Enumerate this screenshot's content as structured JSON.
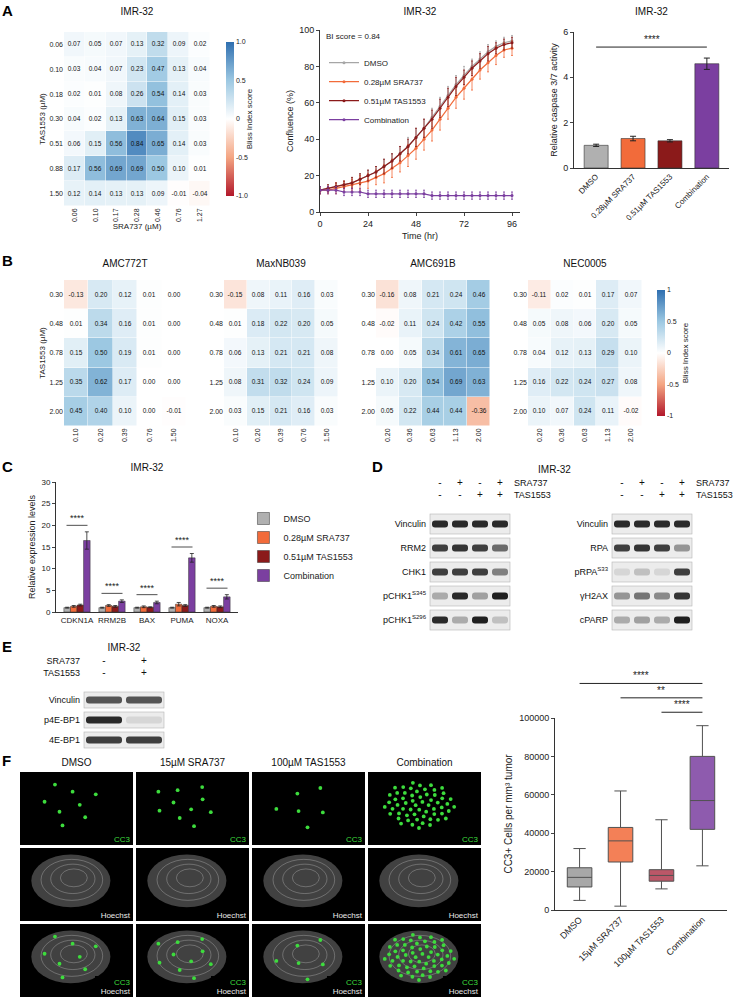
{
  "panel_letters": [
    "A",
    "B",
    "C",
    "D",
    "E",
    "F"
  ],
  "chart_data": [
    {
      "type": "heatmap",
      "title": "IMR-32",
      "x_label": "SRA737 (µM)",
      "y_label": "TAS1553 (µM)",
      "x_categories": [
        "0.06",
        "0.10",
        "0.17",
        "0.28",
        "0.46",
        "0.76",
        "1.27"
      ],
      "y_categories": [
        "0.06",
        "0.10",
        "0.18",
        "0.30",
        "0.51",
        "0.88",
        "1.50"
      ],
      "cells": [
        [
          0.07,
          0.05,
          0.07,
          0.13,
          0.32,
          0.09,
          0.02
        ],
        [
          0.03,
          0.04,
          0.07,
          0.23,
          0.47,
          0.13,
          0.04
        ],
        [
          0.02,
          0.01,
          0.08,
          0.26,
          0.54,
          0.14,
          0.03
        ],
        [
          0.04,
          0.02,
          0.13,
          0.63,
          0.64,
          0.15,
          0.03
        ],
        [
          0.06,
          0.15,
          0.56,
          0.84,
          0.65,
          0.14,
          0.03
        ],
        [
          0.17,
          0.56,
          0.69,
          0.69,
          0.5,
          0.1,
          0.01
        ],
        [
          0.12,
          0.14,
          0.13,
          0.13,
          0.09,
          -0.01,
          -0.04
        ]
      ],
      "zlim": [
        -1,
        1
      ],
      "data_labels": true,
      "colorbar": {
        "title": "Bliss Index score",
        "ticks": [
          {
            "value": 1,
            "label": "1.0"
          },
          0.5,
          0,
          -0.5,
          {
            "value": -1,
            "label": "-1.0"
          }
        ]
      }
    },
    {
      "type": "line",
      "title": "IMR-32",
      "x_label": "Time (hr)",
      "y_label": "Confluence (%)",
      "annotation": "BI score = 0.84",
      "x": [
        0,
        4,
        8,
        12,
        16,
        20,
        24,
        28,
        32,
        36,
        40,
        44,
        48,
        52,
        56,
        60,
        64,
        68,
        72,
        76,
        80,
        84,
        88,
        92,
        96
      ],
      "xlim": [
        0,
        100
      ],
      "xticks": [
        0,
        24,
        48,
        72,
        96
      ],
      "ylim": [
        0,
        100
      ],
      "yticks": [
        0,
        20,
        40,
        60,
        80,
        100
      ],
      "legend": "top left",
      "series": [
        {
          "name": "DMSO",
          "color": "#a6a6a6",
          "values": [
            12,
            13,
            14,
            15,
            16,
            18,
            20,
            22,
            25,
            28,
            32,
            36,
            41,
            46,
            52,
            58,
            64,
            70,
            75,
            80,
            84,
            88,
            91,
            93,
            94
          ],
          "errors": [
            2,
            2,
            2,
            2,
            3,
            3,
            3,
            3,
            4,
            4,
            4,
            5,
            5,
            5,
            5,
            5,
            5,
            5,
            5,
            4,
            4,
            4,
            3,
            3,
            3
          ]
        },
        {
          "name": "0.28µM SRA737",
          "color": "#f26b3a",
          "values": [
            12,
            12,
            13,
            14,
            15,
            16,
            17,
            19,
            21,
            24,
            27,
            31,
            35,
            40,
            45,
            51,
            57,
            63,
            68,
            73,
            78,
            82,
            86,
            89,
            90
          ],
          "errors": [
            2,
            2,
            3,
            3,
            3,
            4,
            4,
            4,
            5,
            5,
            5,
            6,
            6,
            6,
            6,
            6,
            6,
            6,
            6,
            6,
            5,
            5,
            5,
            4,
            4
          ]
        },
        {
          "name": "0.51µM TAS1553",
          "color": "#8b1a1a",
          "values": [
            12,
            13,
            14,
            15,
            16,
            18,
            20,
            22,
            25,
            28,
            32,
            36,
            41,
            46,
            51,
            57,
            63,
            69,
            74,
            79,
            83,
            87,
            90,
            92,
            93
          ],
          "errors": [
            2,
            2,
            2,
            2,
            3,
            3,
            3,
            3,
            4,
            4,
            4,
            4,
            5,
            5,
            5,
            5,
            5,
            5,
            4,
            4,
            4,
            4,
            3,
            3,
            3
          ]
        },
        {
          "name": "Combination",
          "color": "#7b3fa0",
          "values": [
            12,
            12,
            12,
            11,
            11,
            11,
            10,
            10,
            10,
            10,
            10,
            10,
            10,
            10,
            9,
            9,
            9,
            9,
            9,
            9,
            9,
            9,
            9,
            9,
            9
          ],
          "errors": [
            2,
            2,
            2,
            2,
            2,
            2,
            2,
            2,
            2,
            2,
            2,
            2,
            2,
            2,
            2,
            2,
            2,
            2,
            2,
            2,
            2,
            2,
            2,
            2,
            2
          ]
        }
      ]
    },
    {
      "type": "bar",
      "title": "IMR-32",
      "y_label": "Relative caspase 3/7 activity",
      "categories": [
        "DMSO",
        "0.28µM SRA737",
        "0.51µM TAS1553",
        "Combination"
      ],
      "values": [
        1.0,
        1.3,
        1.2,
        4.6
      ],
      "errors": [
        0.05,
        0.1,
        0.05,
        0.25
      ],
      "colors": [
        "#b0b0b0",
        "#f26b3a",
        "#8b1a1a",
        "#7b3fa0"
      ],
      "ylim": [
        0,
        6
      ],
      "yticks": [
        0,
        2,
        4,
        6
      ],
      "significance": [
        {
          "from": 0,
          "to": 3,
          "label": "****"
        }
      ]
    },
    {
      "type": "heatmap",
      "title": "AMC772T",
      "y_label": "TAS1553 (µM)",
      "x_categories": [
        "0.10",
        "0.20",
        "0.39",
        "0.76",
        "1.50"
      ],
      "y_categories": [
        "0.30",
        "0.48",
        "0.78",
        "1.25",
        "2.00"
      ],
      "cells": [
        [
          -0.13,
          0.2,
          0.12,
          0.01,
          0.0
        ],
        [
          0.01,
          0.34,
          0.16,
          0.01,
          0.0
        ],
        [
          0.15,
          0.5,
          0.19,
          0.01,
          0.0
        ],
        [
          0.35,
          0.62,
          0.17,
          0.0,
          0.0
        ],
        [
          0.45,
          0.4,
          0.1,
          0.0,
          -0.01
        ]
      ],
      "zlim": [
        -1,
        1
      ],
      "data_labels": true
    },
    {
      "type": "heatmap",
      "title": "MaxNB039",
      "x_categories": [
        "0.10",
        "0.20",
        "0.39",
        "0.76",
        "1.50"
      ],
      "y_categories": [
        "0.30",
        "0.48",
        "0.78",
        "1.25",
        "2.00"
      ],
      "cells": [
        [
          -0.15,
          0.08,
          0.11,
          0.16,
          0.03
        ],
        [
          0.01,
          0.18,
          0.22,
          0.2,
          0.05
        ],
        [
          0.06,
          0.13,
          0.21,
          0.21,
          0.08
        ],
        [
          0.08,
          0.31,
          0.32,
          0.24,
          0.09
        ],
        [
          0.03,
          0.15,
          0.21,
          0.16,
          0.03
        ]
      ],
      "zlim": [
        -1,
        1
      ],
      "data_labels": true
    },
    {
      "type": "heatmap",
      "title": "AMC691B",
      "x_categories": [
        "0.20",
        "0.36",
        "0.63",
        "1.13",
        "2.00"
      ],
      "y_categories": [
        "0.30",
        "0.48",
        "0.78",
        "1.25",
        "2.00"
      ],
      "cells": [
        [
          -0.16,
          0.08,
          0.21,
          0.24,
          0.46
        ],
        [
          -0.02,
          0.11,
          0.24,
          0.42,
          0.55
        ],
        [
          0.0,
          0.05,
          0.34,
          0.61,
          0.65
        ],
        [
          0.1,
          0.2,
          0.54,
          0.69,
          0.63
        ],
        [
          0.05,
          0.22,
          0.44,
          0.44,
          -0.36
        ]
      ],
      "zlim": [
        -1,
        1
      ],
      "data_labels": true
    },
    {
      "type": "heatmap",
      "title": "NEC0005",
      "x_categories": [
        "0.20",
        "0.36",
        "0.63",
        "1.13",
        "2.00"
      ],
      "y_categories": [
        "0.30",
        "0.48",
        "0.78",
        "1.25",
        "2.00"
      ],
      "cells": [
        [
          -0.11,
          0.02,
          0.01,
          0.17,
          0.07
        ],
        [
          0.05,
          0.08,
          0.06,
          0.2,
          0.05
        ],
        [
          0.04,
          0.12,
          0.13,
          0.29,
          0.1
        ],
        [
          0.16,
          0.22,
          0.24,
          0.27,
          0.08
        ],
        [
          0.1,
          0.07,
          0.24,
          0.11,
          -0.02
        ]
      ],
      "zlim": [
        -1,
        1
      ],
      "data_labels": true,
      "colorbar": {
        "title": "Bliss Index score",
        "ticks": [
          1,
          0.5,
          0,
          -0.5,
          -1
        ]
      }
    },
    {
      "type": "bar",
      "title": "IMR-32",
      "y_label": "Relative expression levels",
      "categories": [
        "CDKN1A",
        "RRM2B",
        "BAX",
        "PUMA",
        "NOXA"
      ],
      "series": [
        {
          "name": "DMSO",
          "color": "#b0b0b0",
          "values": [
            1,
            1,
            1,
            1,
            1
          ],
          "errors": [
            0.1,
            0.1,
            0.1,
            0.1,
            0.1
          ]
        },
        {
          "name": "0.28µM SRA737",
          "color": "#f26b3a",
          "values": [
            1.3,
            1.5,
            1.2,
            1.8,
            1.3
          ],
          "errors": [
            0.2,
            0.2,
            0.2,
            0.4,
            0.2
          ]
        },
        {
          "name": "0.51µM TAS1553",
          "color": "#8b1a1a",
          "values": [
            1.6,
            1.3,
            1.1,
            1.5,
            1.2
          ],
          "errors": [
            0.2,
            0.2,
            0.1,
            0.2,
            0.2
          ]
        },
        {
          "name": "Combination",
          "color": "#7b3fa0",
          "values": [
            16.5,
            2.5,
            2.2,
            12.5,
            3.5
          ],
          "errors": [
            2.0,
            0.3,
            0.3,
            1.0,
            0.5
          ]
        }
      ],
      "ylim": [
        0,
        30
      ],
      "yticks": [
        0,
        5,
        10,
        15,
        20,
        25,
        30
      ],
      "legend": "right",
      "significance": [
        {
          "category": 0,
          "label": "****"
        },
        {
          "category": 1,
          "label": "****"
        },
        {
          "category": 2,
          "label": "****"
        },
        {
          "category": 3,
          "label": "****"
        },
        {
          "category": 4,
          "label": "****"
        }
      ]
    },
    {
      "type": "box",
      "y_label": "CC3+ Cells per mm³ tumor",
      "categories": [
        "DMSO",
        "15µM SRA737",
        "100µM TAS1553",
        "Combination"
      ],
      "boxes": [
        {
          "min": 5000,
          "q1": 12000,
          "median": 17000,
          "q3": 22000,
          "max": 32000
        },
        {
          "min": 2000,
          "q1": 25000,
          "median": 36000,
          "q3": 43000,
          "max": 62000
        },
        {
          "min": 11000,
          "q1": 15000,
          "median": 18000,
          "q3": 21000,
          "max": 47000
        },
        {
          "min": 23000,
          "q1": 42000,
          "median": 57000,
          "q3": 80000,
          "max": 96000
        }
      ],
      "colors": [
        "#9a9a9a",
        "#f26b3a",
        "#b03a4e",
        "#7b3fa0"
      ],
      "ylim": [
        0,
        100000
      ],
      "yticks": [
        0,
        20000,
        40000,
        60000,
        80000,
        100000
      ],
      "significance": [
        {
          "from": 0,
          "to": 3,
          "label": "****"
        },
        {
          "from": 1,
          "to": 3,
          "label": "**"
        },
        {
          "from": 2,
          "to": 3,
          "label": "****"
        }
      ]
    }
  ],
  "blots": [
    {
      "title": "IMR-32",
      "conditions": [
        {
          "label": "SRA737",
          "signs": [
            "-",
            "+",
            "-",
            "+"
          ]
        },
        {
          "label": "TAS1553",
          "signs": [
            "-",
            "-",
            "+",
            "+"
          ]
        }
      ],
      "groups": [
        {
          "rows": [
            {
              "label": "Vinculin",
              "intensity": [
                0.9,
                0.9,
                0.9,
                0.9
              ]
            },
            {
              "label": "RRM2",
              "intensity": [
                0.8,
                0.85,
                0.8,
                0.6
              ]
            },
            {
              "label": "CHK1",
              "intensity": [
                0.8,
                0.8,
                0.8,
                0.5
              ]
            },
            {
              "label": "pCHK1",
              "superscript": "S345",
              "intensity": [
                0.3,
                0.9,
                0.35,
                0.95
              ]
            },
            {
              "label": "pCHK1",
              "superscript": "S296",
              "intensity": [
                0.9,
                0.3,
                0.95,
                0.2
              ]
            }
          ]
        },
        {
          "rows": [
            {
              "label": "Vinculin",
              "intensity": [
                0.9,
                0.9,
                0.9,
                0.9
              ]
            },
            {
              "label": "RPA",
              "intensity": [
                0.8,
                0.85,
                0.8,
                0.4
              ]
            },
            {
              "label": "pRPA",
              "superscript": "S33",
              "intensity": [
                0.1,
                0.2,
                0.1,
                0.8
              ]
            },
            {
              "label": "γH2AX",
              "intensity": [
                0.4,
                0.55,
                0.45,
                0.85
              ]
            },
            {
              "label": "cPARP",
              "intensity": [
                0.3,
                0.35,
                0.3,
                0.95
              ]
            }
          ]
        }
      ]
    },
    {
      "title": "IMR-32",
      "conditions": [
        {
          "label": "SRA737",
          "signs": [
            "-",
            "+"
          ]
        },
        {
          "label": "TAS1553",
          "signs": [
            "-",
            "+"
          ]
        }
      ],
      "groups": [
        {
          "rows": [
            {
              "label": "Vinculin",
              "intensity": [
                0.7,
                0.7
              ]
            },
            {
              "label": "p4E-BP1",
              "intensity": [
                0.9,
                0.1
              ]
            },
            {
              "label": "4E-BP1",
              "intensity": [
                0.8,
                0.8
              ]
            }
          ]
        }
      ]
    }
  ],
  "microscopy": {
    "columns": [
      "DMSO",
      "15µM SRA737",
      "100µM TAS1553",
      "Combination"
    ],
    "channels": [
      {
        "label": "CC3",
        "color": "#3ddc3d"
      },
      {
        "label": "Hoechst",
        "color": "#e8e8e8"
      }
    ],
    "rows": [
      [
        0
      ],
      [
        1
      ],
      [
        0,
        1
      ]
    ],
    "cc3_spots": [
      8,
      10,
      6,
      60
    ]
  }
}
